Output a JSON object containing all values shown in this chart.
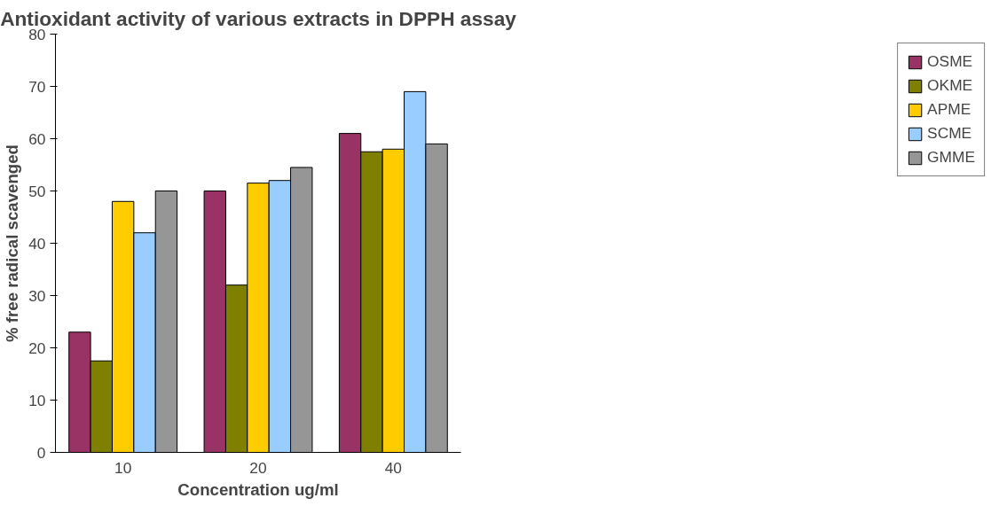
{
  "chart_data": {
    "type": "bar",
    "title": "Antioxidant activity of various extracts in DPPH assay",
    "xlabel": "Concentration ug/ml",
    "ylabel": "% free radical scavenged",
    "categories": [
      "10",
      "20",
      "40"
    ],
    "series": [
      {
        "name": "OSME",
        "color": "#993366",
        "values": [
          23,
          50,
          61
        ]
      },
      {
        "name": "OKME",
        "color": "#808000",
        "values": [
          17.5,
          32,
          57.5
        ]
      },
      {
        "name": "APME",
        "color": "#ffcc00",
        "values": [
          48,
          51.5,
          58
        ]
      },
      {
        "name": "SCME",
        "color": "#99ccff",
        "values": [
          42,
          52,
          69
        ]
      },
      {
        "name": "GMME",
        "color": "#969696",
        "values": [
          50,
          54.5,
          59
        ]
      }
    ],
    "ylim": [
      0,
      80
    ],
    "yticks": [
      0,
      10,
      20,
      30,
      40,
      50,
      60,
      70,
      80
    ],
    "grid": false,
    "legend": "right"
  }
}
